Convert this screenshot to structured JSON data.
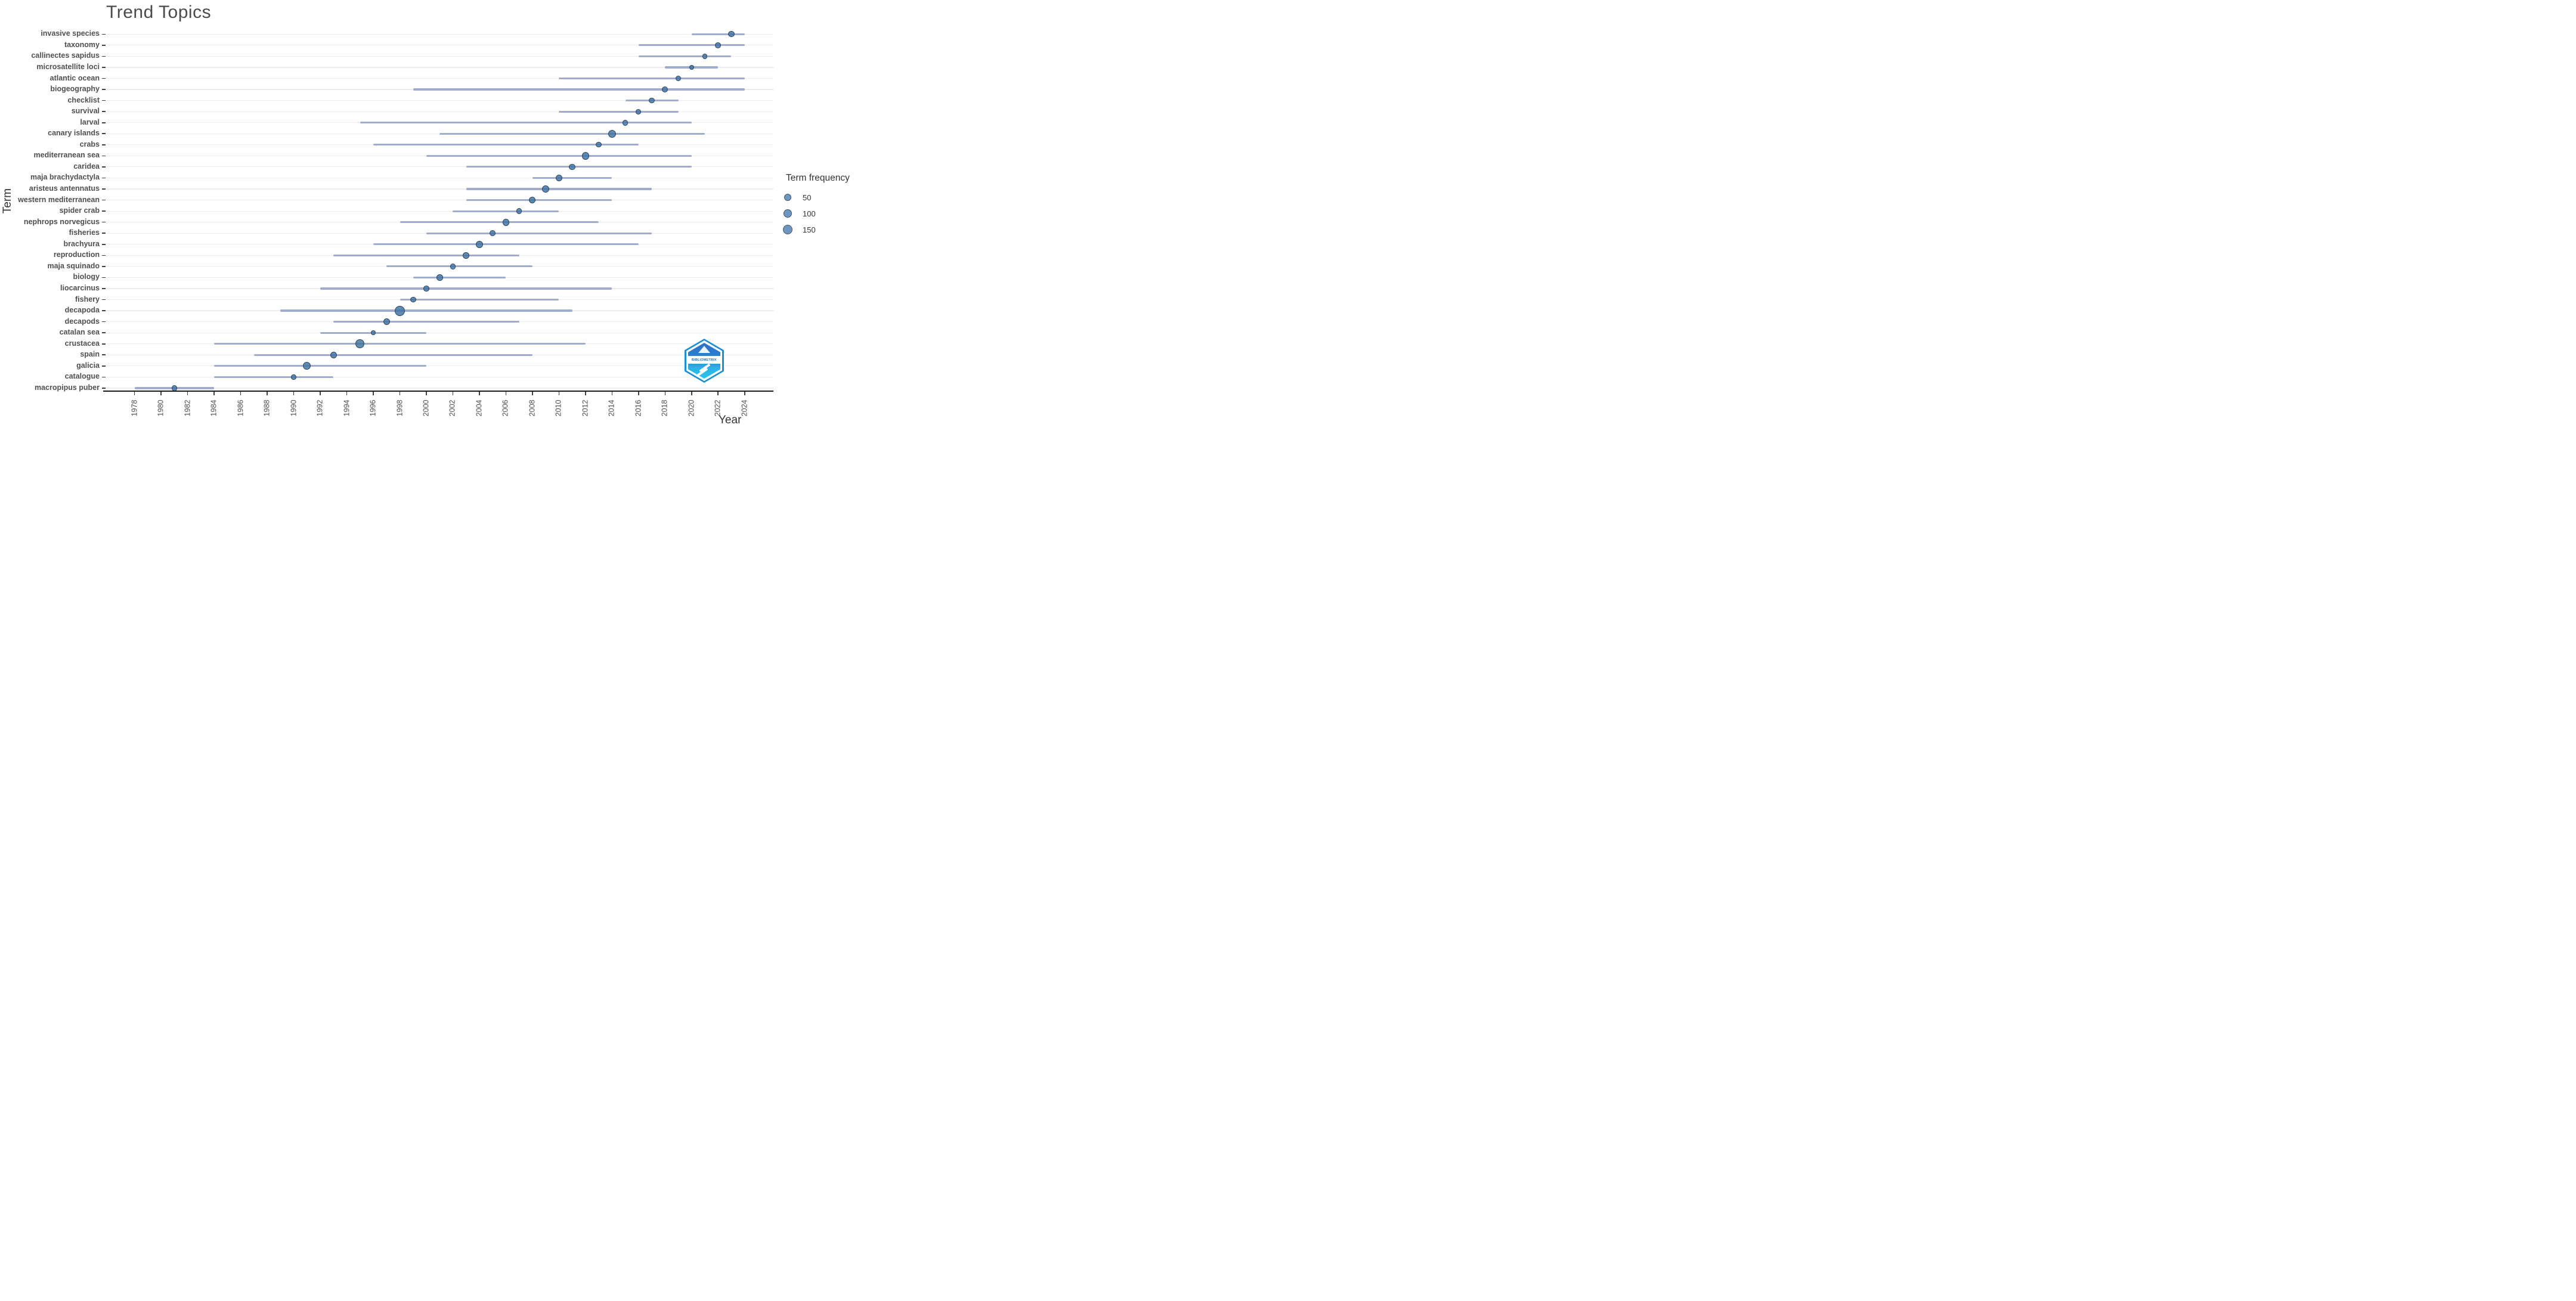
{
  "logo": {
    "text": "BIBLIOMETRIX"
  },
  "chart_data": {
    "type": "dot-range",
    "title": "Trend Topics",
    "xlabel": "Year",
    "ylabel": "Term",
    "x_ticks": [
      1978,
      1980,
      1982,
      1984,
      1986,
      1988,
      1990,
      1992,
      1994,
      1996,
      1998,
      2000,
      2002,
      2004,
      2006,
      2008,
      2010,
      2012,
      2014,
      2016,
      2018,
      2020,
      2022,
      2024
    ],
    "x_range": [
      1977,
      2025
    ],
    "grid": "horizontal-only",
    "legend": {
      "title": "Term frequency",
      "position": "right",
      "items": [
        {
          "label": "50",
          "value": 50
        },
        {
          "label": "100",
          "value": 100
        },
        {
          "label": "150",
          "value": 150
        }
      ]
    },
    "series": [
      {
        "term": "invasive species",
        "year_q1": 2020,
        "year_median": 2023,
        "year_q3": 2024,
        "frequency": 15
      },
      {
        "term": "taxonomy",
        "year_q1": 2016,
        "year_median": 2022,
        "year_q3": 2024,
        "frequency": 10
      },
      {
        "term": "callinectes sapidus",
        "year_q1": 2016,
        "year_median": 2021,
        "year_q3": 2023,
        "frequency": 5
      },
      {
        "term": "microsatellite loci",
        "year_q1": 2018,
        "year_median": 2020,
        "year_q3": 2022,
        "frequency": 3
      },
      {
        "term": "atlantic ocean",
        "year_q1": 2010,
        "year_median": 2019,
        "year_q3": 2024,
        "frequency": 10
      },
      {
        "term": "biogeography",
        "year_q1": 1999,
        "year_median": 2018,
        "year_q3": 2024,
        "frequency": 15
      },
      {
        "term": "checklist",
        "year_q1": 2015,
        "year_median": 2017,
        "year_q3": 2019,
        "frequency": 10
      },
      {
        "term": "survival",
        "year_q1": 2010,
        "year_median": 2016,
        "year_q3": 2019,
        "frequency": 4
      },
      {
        "term": "larval",
        "year_q1": 1995,
        "year_median": 2015,
        "year_q3": 2020,
        "frequency": 10
      },
      {
        "term": "canary islands",
        "year_q1": 2001,
        "year_median": 2014,
        "year_q3": 2021,
        "frequency": 55
      },
      {
        "term": "crabs",
        "year_q1": 1996,
        "year_median": 2013,
        "year_q3": 2016,
        "frequency": 8
      },
      {
        "term": "mediterranean sea",
        "year_q1": 2000,
        "year_median": 2012,
        "year_q3": 2020,
        "frequency": 50
      },
      {
        "term": "caridea",
        "year_q1": 2003,
        "year_median": 2011,
        "year_q3": 2020,
        "frequency": 20
      },
      {
        "term": "maja brachydactyla",
        "year_q1": 2008,
        "year_median": 2010,
        "year_q3": 2014,
        "frequency": 25
      },
      {
        "term": "aristeus antennatus",
        "year_q1": 2003,
        "year_median": 2009,
        "year_q3": 2017,
        "frequency": 35
      },
      {
        "term": "western mediterranean",
        "year_q1": 2003,
        "year_median": 2008,
        "year_q3": 2014,
        "frequency": 25
      },
      {
        "term": "spider crab",
        "year_q1": 2002,
        "year_median": 2007,
        "year_q3": 2010,
        "frequency": 10
      },
      {
        "term": "nephrops norvegicus",
        "year_q1": 1998,
        "year_median": 2006,
        "year_q3": 2013,
        "frequency": 35
      },
      {
        "term": "fisheries",
        "year_q1": 2000,
        "year_median": 2005,
        "year_q3": 2017,
        "frequency": 15
      },
      {
        "term": "brachyura",
        "year_q1": 1996,
        "year_median": 2004,
        "year_q3": 2016,
        "frequency": 45
      },
      {
        "term": "reproduction",
        "year_q1": 1993,
        "year_median": 2003,
        "year_q3": 2007,
        "frequency": 20
      },
      {
        "term": "maja squinado",
        "year_q1": 1997,
        "year_median": 2002,
        "year_q3": 2008,
        "frequency": 8
      },
      {
        "term": "biology",
        "year_q1": 1999,
        "year_median": 2001,
        "year_q3": 2006,
        "frequency": 20
      },
      {
        "term": "liocarcinus",
        "year_q1": 1992,
        "year_median": 2000,
        "year_q3": 2014,
        "frequency": 10
      },
      {
        "term": "fishery",
        "year_q1": 1998,
        "year_median": 1999,
        "year_q3": 2010,
        "frequency": 10
      },
      {
        "term": "decapoda",
        "year_q1": 1989,
        "year_median": 1998,
        "year_q3": 2011,
        "frequency": 160
      },
      {
        "term": "decapods",
        "year_q1": 1993,
        "year_median": 1997,
        "year_q3": 2007,
        "frequency": 25
      },
      {
        "term": "catalan sea",
        "year_q1": 1992,
        "year_median": 1996,
        "year_q3": 2000,
        "frequency": 3
      },
      {
        "term": "crustacea",
        "year_q1": 1984,
        "year_median": 1995,
        "year_q3": 2012,
        "frequency": 100
      },
      {
        "term": "spain",
        "year_q1": 1987,
        "year_median": 1993,
        "year_q3": 2008,
        "frequency": 30
      },
      {
        "term": "galicia",
        "year_q1": 1984,
        "year_median": 1991,
        "year_q3": 2000,
        "frequency": 55
      },
      {
        "term": "catalogue",
        "year_q1": 1984,
        "year_median": 1990,
        "year_q3": 1993,
        "frequency": 2
      },
      {
        "term": "macropipus puber",
        "year_q1": 1978,
        "year_median": 1981,
        "year_q3": 1984,
        "frequency": 8
      }
    ]
  }
}
